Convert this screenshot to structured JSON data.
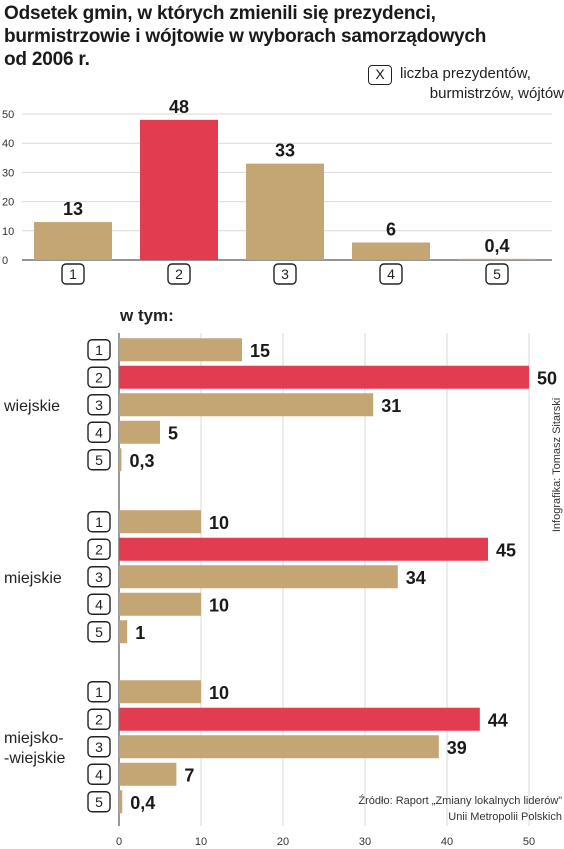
{
  "title_lines": [
    "Odsetek gmin, w których zmienili się prezydenci,",
    "burmistrzowie i wójtowie w wyborach samorządowych",
    "od 2006 r."
  ],
  "legend": {
    "key": "X",
    "text_lines": [
      "liczba prezydentów,",
      "burmistrzów, wójtów"
    ]
  },
  "colors": {
    "base": "#c4a675",
    "highlight": "#e23c50",
    "grid": "#d9d9d9",
    "axis": "#555555"
  },
  "chart_data": [
    {
      "type": "bar",
      "orientation": "vertical",
      "categories": [
        "1",
        "2",
        "3",
        "4",
        "5"
      ],
      "values": [
        13,
        48,
        33,
        6,
        0.4
      ],
      "value_labels": [
        "13",
        "48",
        "33",
        "6",
        "0,4"
      ],
      "highlight_index": 1,
      "ylim": [
        0,
        50
      ],
      "y_ticks": [
        0,
        10,
        20,
        30,
        40,
        50
      ],
      "y_tick_labels": [
        "0",
        "10",
        "20",
        "30",
        "40",
        "50"
      ],
      "grid": true
    },
    {
      "type": "bar",
      "orientation": "horizontal",
      "heading": "w tym:",
      "categories": [
        "1",
        "2",
        "3",
        "4",
        "5"
      ],
      "highlight_index": 1,
      "xlim": [
        0,
        50
      ],
      "x_ticks": [
        0,
        10,
        20,
        30,
        40,
        50
      ],
      "x_tick_labels": [
        "0",
        "10",
        "20",
        "30",
        "40",
        "50"
      ],
      "grid": true,
      "groups": [
        {
          "name_lines": [
            "wiejskie"
          ],
          "values": [
            15,
            50,
            31,
            5,
            0.3
          ],
          "value_labels": [
            "15",
            "50",
            "31",
            "5",
            "0,3"
          ]
        },
        {
          "name_lines": [
            "miejskie"
          ],
          "values": [
            10,
            45,
            34,
            10,
            1
          ],
          "value_labels": [
            "10",
            "45",
            "34",
            "10",
            "1"
          ]
        },
        {
          "name_lines": [
            "miejsko-",
            "-wiejskie"
          ],
          "values": [
            10,
            44,
            39,
            7,
            0.4
          ],
          "value_labels": [
            "10",
            "44",
            "39",
            "7",
            "0,4"
          ]
        }
      ]
    }
  ],
  "credit": "Infografika: Tomasz Sitarski",
  "source_lines": [
    "Źródło: Raport „Zmiany lokalnych liderów”",
    "Unii Metropolii Polskich"
  ]
}
